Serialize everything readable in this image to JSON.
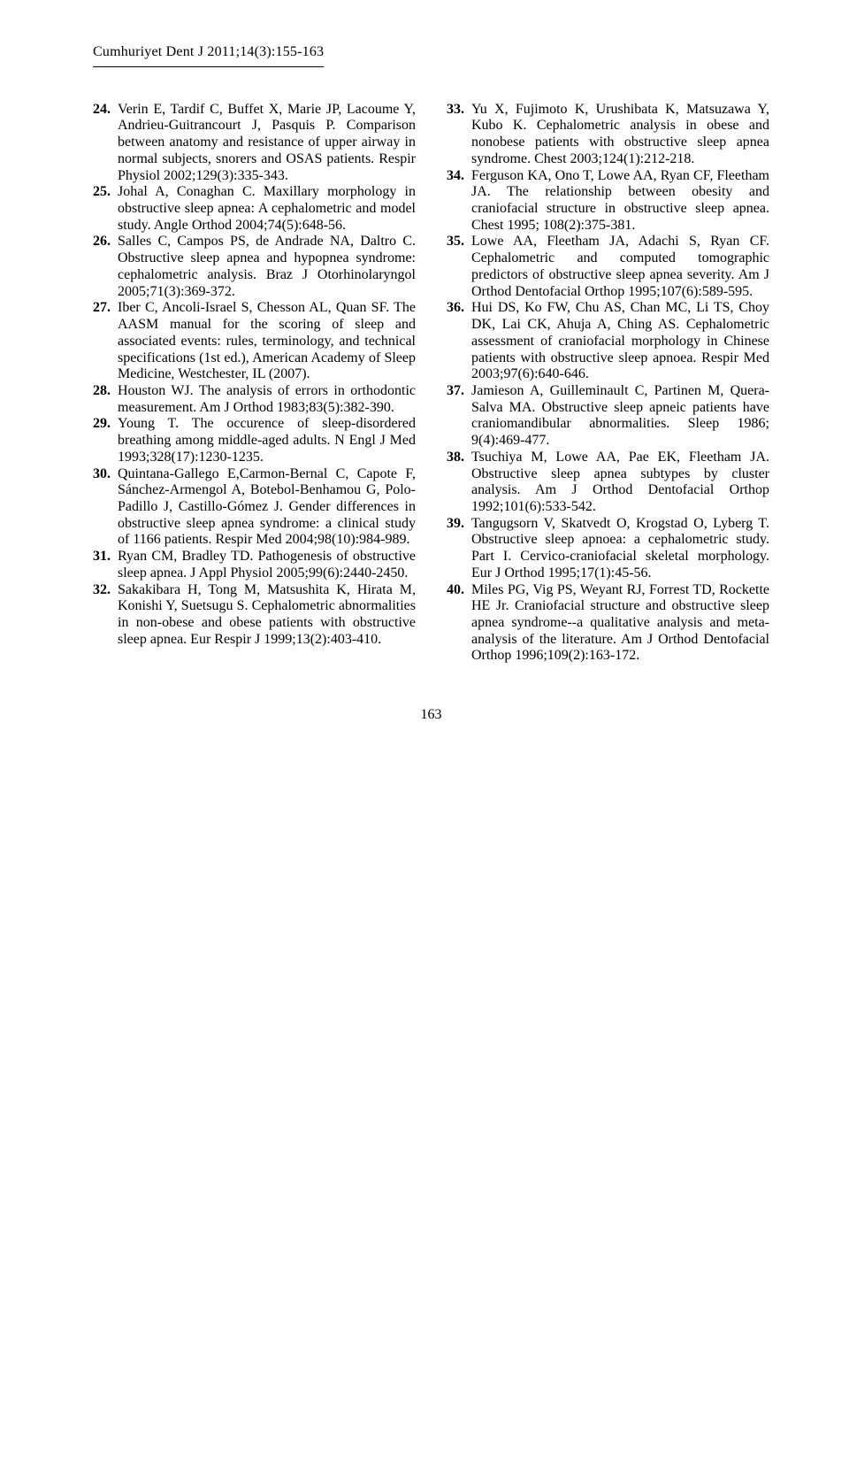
{
  "header": "Cumhuriyet Dent J 2011;14(3):155-163",
  "page_number": "163",
  "references_left": [
    {
      "num": "24.",
      "text": "Verin E, Tardif C, Buffet X, Marie JP, Lacoume Y, Andrieu-Guitrancourt J, Pasquis P. Comparison between anatomy and resistance of upper airway in normal subjects, snorers and OSAS patients. Respir Physiol 2002;129(3):335-343."
    },
    {
      "num": "25.",
      "text": "Johal A, Conaghan C. Maxillary morphology in obstructive sleep apnea: A cephalometric and model study. Angle Orthod 2004;74(5):648-56."
    },
    {
      "num": "26.",
      "text": "Salles C, Campos PS, de Andrade NA, Daltro C. Obstructive sleep apnea and hypopnea syndrome: cephalometric analysis. Braz J Otorhinolaryngol 2005;71(3):369-372."
    },
    {
      "num": "27.",
      "text": "Iber C, Ancoli-Israel S, Chesson AL, Quan SF. The AASM manual for the scoring of sleep and associated events: rules, terminology, and technical specifications (1st ed.), American Academy of Sleep Medicine, Westchester, IL (2007)."
    },
    {
      "num": "28.",
      "text": "Houston WJ. The analysis of errors in orthodontic measurement. Am J Orthod 1983;83(5):382-390."
    },
    {
      "num": "29.",
      "text": "Young T. The occurence of sleep-disordered breathing among middle-aged adults. N Engl J Med 1993;328(17):1230-1235."
    },
    {
      "num": "30.",
      "text": "Quintana-Gallego E,Carmon-Bernal C, Capote F, Sánchez-Armengol A, Botebol-Benhamou G, Polo-Padillo J, Castillo-Gómez J. Gender differences in obstructive sleep apnea syndrome: a clinical study of 1166 patients. Respir Med 2004;98(10):984-989."
    },
    {
      "num": "31.",
      "text": "Ryan CM, Bradley TD. Pathogenesis of obstructive sleep apnea. J Appl Physiol 2005;99(6):2440-2450."
    },
    {
      "num": "32.",
      "text": "Sakakibara H, Tong M, Matsushita K, Hirata M, Konishi Y, Suetsugu S. Cephalometric abnormalities in non-obese and obese patients with obstructive sleep apnea. Eur Respir J 1999;13(2):403-410."
    }
  ],
  "references_right": [
    {
      "num": "33.",
      "text": "Yu X, Fujimoto K, Urushibata K, Matsuzawa Y, Kubo K. Cephalometric analysis in obese and nonobese patients with obstructive sleep apnea syndrome. Chest 2003;124(1):212-218."
    },
    {
      "num": "34.",
      "text": "Ferguson KA, Ono T, Lowe AA, Ryan CF, Fleetham JA. The relationship between obesity and craniofacial structure in obstructive sleep apnea. Chest 1995; 108(2):375-381."
    },
    {
      "num": "35.",
      "text": "Lowe AA, Fleetham JA, Adachi S, Ryan CF. Cephalometric and computed tomographic predictors of obstructive sleep apnea severity. Am J Orthod Dentofacial Orthop 1995;107(6):589-595."
    },
    {
      "num": "36.",
      "text": "Hui DS, Ko FW, Chu AS, Chan MC, Li TS, Choy DK, Lai CK, Ahuja A, Ching AS. Cephalometric assessment of craniofacial morphology in Chinese patients with obstructive sleep apnoea. Respir Med 2003;97(6):640-646."
    },
    {
      "num": "37.",
      "text": "Jamieson A, Guilleminault C, Partinen M, Quera-Salva MA. Obstructive sleep apneic patients have craniomandibular abnormalities. Sleep 1986; 9(4):469-477."
    },
    {
      "num": "38.",
      "text": "Tsuchiya M, Lowe AA, Pae EK, Fleetham JA. Obstructive sleep apnea subtypes by cluster analysis. Am J Orthod Dentofacial Orthop 1992;101(6):533-542."
    },
    {
      "num": "39.",
      "text": "Tangugsorn V, Skatvedt O, Krogstad O, Lyberg T. Obstructive sleep apnoea: a cephalometric study. Part I. Cervico-craniofacial skeletal morphology. Eur J Orthod 1995;17(1):45-56."
    },
    {
      "num": "40.",
      "text": "Miles PG, Vig PS, Weyant RJ, Forrest TD, Rockette HE Jr. Craniofacial structure and obstructive sleep apnea syndrome--a qualitative analysis and meta-analysis of the literature. Am J Orthod Dentofacial Orthop 1996;109(2):163-172."
    }
  ]
}
